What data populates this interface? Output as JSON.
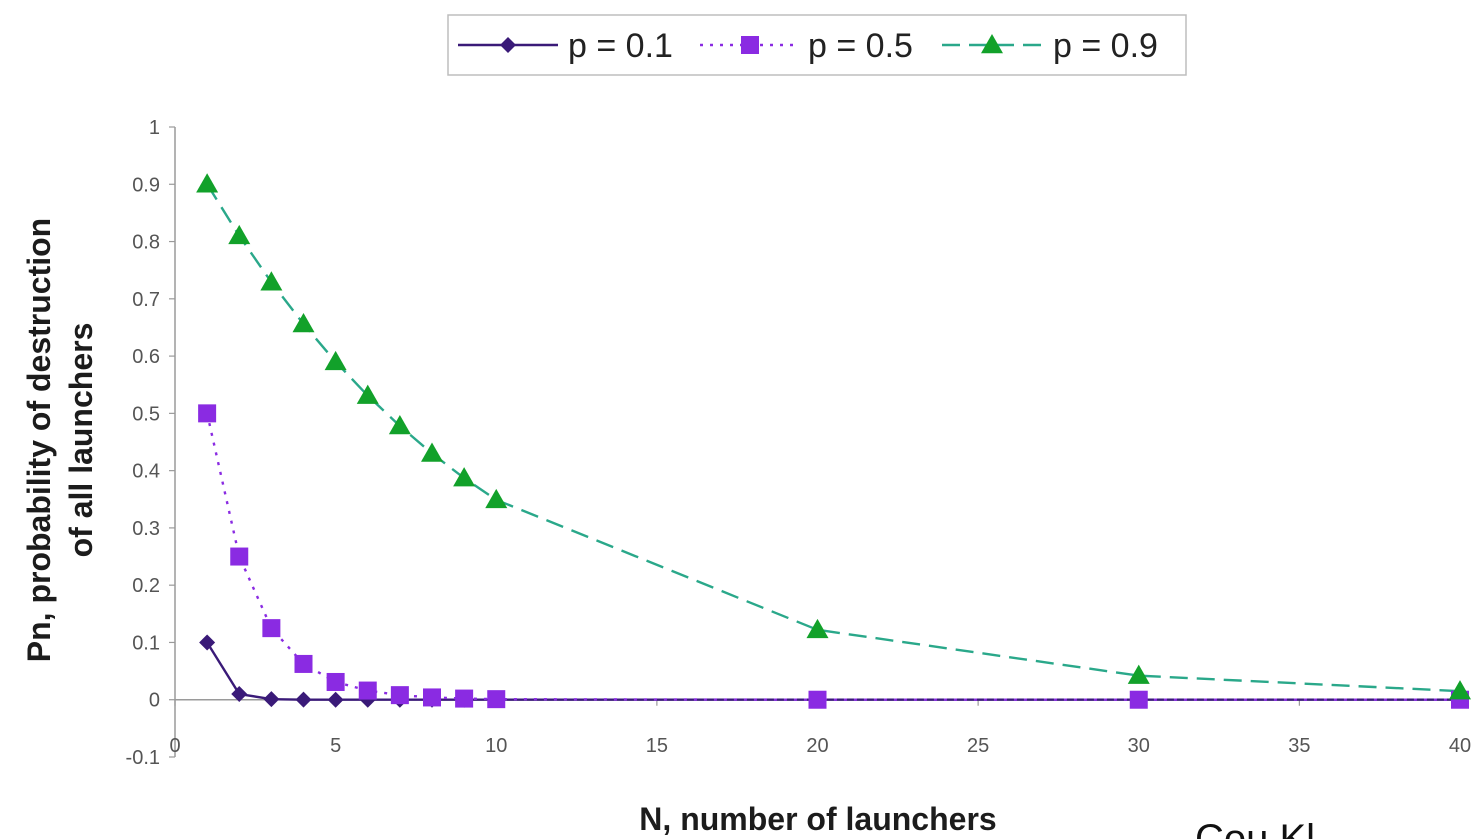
{
  "chart_data": {
    "type": "line",
    "xlabel": "N, number of launchers",
    "ylabel": [
      "Pn, probability of destruction",
      "of all launchers"
    ],
    "xlim": [
      0,
      40
    ],
    "ylim": [
      -0.1,
      1
    ],
    "xticks": [
      0,
      5,
      10,
      15,
      20,
      25,
      30,
      35,
      40
    ],
    "yticks": [
      -0.1,
      0,
      0.1,
      0.2,
      0.3,
      0.4,
      0.5,
      0.6,
      0.7,
      0.8,
      0.9,
      1
    ],
    "grid": false,
    "legend_position": "top-center",
    "series": [
      {
        "name": "p = 0.1",
        "color": "#3a1a78",
        "marker": "diamond",
        "line_style": "solid",
        "x": [
          1,
          2,
          3,
          4,
          5,
          6,
          7,
          8,
          9,
          10,
          20,
          30,
          40
        ],
        "y": [
          0.1,
          0.01,
          0.001,
          0.0001,
          0,
          0,
          0,
          0,
          0,
          0,
          0,
          0,
          0
        ]
      },
      {
        "name": "p = 0.5",
        "color": "#8a2be2",
        "marker": "square",
        "line_style": "dotted",
        "x": [
          1,
          2,
          3,
          4,
          5,
          6,
          7,
          8,
          9,
          10,
          20,
          30,
          40
        ],
        "y": [
          0.5,
          0.25,
          0.125,
          0.0625,
          0.031,
          0.016,
          0.008,
          0.004,
          0.002,
          0.001,
          0,
          0,
          0
        ]
      },
      {
        "name": "p = 0.9",
        "color": "#12a12a",
        "marker": "triangle",
        "line_style": "dashed",
        "line_color": "#2aa88a",
        "x": [
          1,
          2,
          3,
          4,
          5,
          6,
          7,
          8,
          9,
          10,
          20,
          30,
          40
        ],
        "y": [
          0.9,
          0.81,
          0.729,
          0.656,
          0.59,
          0.531,
          0.478,
          0.43,
          0.387,
          0.349,
          0.122,
          0.042,
          0.015
        ]
      }
    ]
  },
  "watermark_text": "Cou  Kl"
}
